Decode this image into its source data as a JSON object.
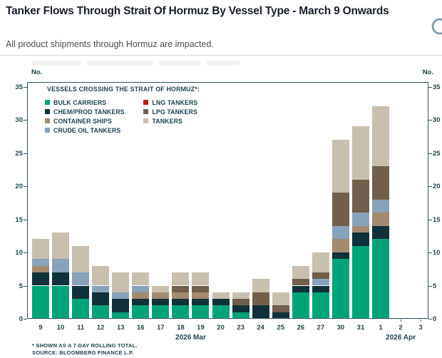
{
  "header": {
    "title": "Tanker Flows Through Strait Of Hormuz By Vessel Type - March 9 Onwards",
    "subtitle": "All product shipments through Hormuz are impacted.",
    "share_icon": "circular-arrow-icon"
  },
  "chart_data": {
    "type": "bar",
    "stacked": true,
    "legend_title": "VESSELS CROSSING THE STRAIT OF HORMUZ*:",
    "legend_position": "top-left-inside",
    "grid": false,
    "y_axis_label": "No.",
    "ylim": [
      0,
      35
    ],
    "y_ticks": [
      0,
      5,
      10,
      15,
      20,
      25,
      30,
      35
    ],
    "categories": [
      "9",
      "10",
      "11",
      "12",
      "13",
      "16",
      "17",
      "18",
      "19",
      "20",
      "23",
      "24",
      "25",
      "26",
      "27",
      "30",
      "31",
      "1",
      "2",
      "3"
    ],
    "month_labels": [
      {
        "text": "2026 Mar",
        "center_index": 7.5
      },
      {
        "text": "2026 Apr",
        "center_index": 18
      }
    ],
    "series": [
      {
        "name": "BULK CARRIERS",
        "color": "#00a478",
        "values": [
          5,
          5,
          3,
          2,
          1,
          2,
          2,
          2,
          2,
          2,
          1,
          0,
          0,
          4,
          4,
          9,
          11,
          12,
          0,
          0
        ]
      },
      {
        "name": "CHEM/PROD TANKERS",
        "color": "#10313a",
        "values": [
          2,
          2,
          2,
          2,
          2,
          1,
          1,
          1,
          1,
          1,
          1,
          2,
          1,
          1,
          1,
          1,
          2,
          2,
          0,
          0
        ]
      },
      {
        "name": "CONTAINER SHIPS",
        "color": "#a28b71",
        "values": [
          1,
          0,
          0,
          0,
          0,
          1,
          1,
          1,
          1,
          0,
          0,
          0,
          0,
          0,
          0,
          2,
          1,
          2,
          0,
          0
        ]
      },
      {
        "name": "CRUDE OIL TANKERS",
        "color": "#88a2ba",
        "values": [
          1,
          2,
          2,
          1,
          1,
          1,
          0,
          0,
          0,
          0,
          0,
          0,
          0,
          0,
          1,
          2,
          2,
          2,
          0,
          0
        ]
      },
      {
        "name": "LNG TANKERS",
        "color": "#bf1d12",
        "values": [
          0,
          0,
          0,
          0,
          0,
          0,
          0,
          0,
          0,
          0,
          0,
          0,
          0,
          0,
          0,
          0,
          0,
          0,
          0,
          0
        ]
      },
      {
        "name": "LPG TANKERS",
        "color": "#715f4b",
        "values": [
          0,
          0,
          0,
          0,
          0,
          0,
          0,
          1,
          1,
          0,
          1,
          2,
          1,
          1,
          1,
          5,
          5,
          5,
          0,
          0
        ]
      },
      {
        "name": "TANKERS",
        "color": "#c8bfae",
        "values": [
          3,
          4,
          4,
          3,
          3,
          2,
          1,
          2,
          2,
          1,
          1,
          2,
          2,
          2,
          3,
          8,
          8,
          9,
          0,
          0
        ]
      }
    ],
    "totals": [
      12,
      13,
      11,
      8,
      7,
      7,
      5,
      7,
      7,
      4,
      4,
      6,
      4,
      8,
      10,
      27,
      29,
      32,
      0,
      0
    ]
  },
  "footnotes": [
    "* SHOWN AS A 7-DAY ROLLING TOTAL.",
    "SOURCE: BLOOMBERG FINANCE L.P."
  ],
  "colors": {
    "accent_text": "#1d4450",
    "frame": "#2e5660",
    "title_text": "#191e2b",
    "subtitle_text": "#4b4e55",
    "divider": "#d4d6da",
    "share_icon": "#7d99b0"
  }
}
